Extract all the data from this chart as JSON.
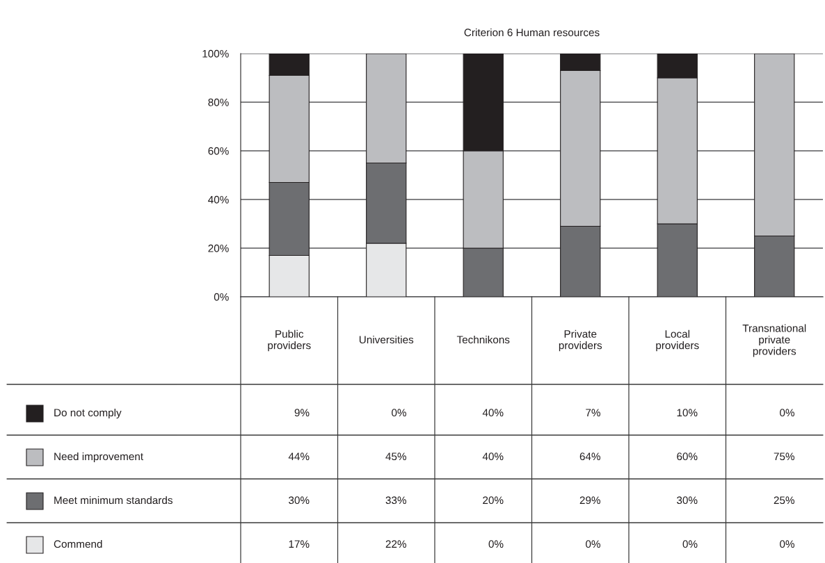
{
  "chart_data": {
    "type": "bar",
    "title": "Criterion 6 Human resources",
    "categories": [
      "Public providers",
      "Universities",
      "Technikons",
      "Private providers",
      "Local providers",
      "Transnational private providers"
    ],
    "stacked": true,
    "series": [
      {
        "name": "Commend",
        "color": "#e6e7e8",
        "values": [
          17,
          22,
          0,
          0,
          0,
          0
        ],
        "value_labels": [
          "17%",
          "22%",
          "0%",
          "0%",
          "0%",
          "0%"
        ]
      },
      {
        "name": "Meet minimum standards",
        "color": "#6d6e71",
        "values": [
          30,
          33,
          20,
          29,
          30,
          25
        ],
        "value_labels": [
          "30%",
          "33%",
          "20%",
          "29%",
          "30%",
          "25%"
        ]
      },
      {
        "name": "Need improvement",
        "color": "#bcbdc0",
        "values": [
          44,
          45,
          40,
          64,
          60,
          75
        ],
        "value_labels": [
          "44%",
          "45%",
          "40%",
          "64%",
          "60%",
          "75%"
        ]
      },
      {
        "name": "Do not comply",
        "color": "#231f20",
        "values": [
          9,
          0,
          40,
          7,
          10,
          0
        ],
        "value_labels": [
          "9%",
          "0%",
          "40%",
          "7%",
          "10%",
          "0%"
        ]
      }
    ],
    "ylim": [
      0,
      100
    ],
    "yticks": [
      {
        "value": 0,
        "label": "0%"
      },
      {
        "value": 20,
        "label": "20%"
      },
      {
        "value": 40,
        "label": "40%"
      },
      {
        "value": 60,
        "label": "60%"
      },
      {
        "value": 80,
        "label": "80%"
      },
      {
        "value": 100,
        "label": "100%"
      }
    ],
    "grid": "y",
    "legend": "bottom"
  }
}
